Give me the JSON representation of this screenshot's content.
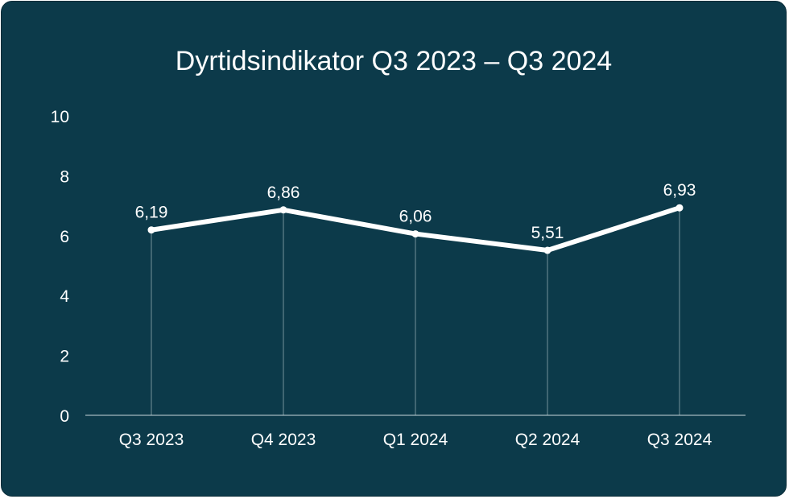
{
  "chart_data": {
    "type": "line",
    "title": "Dyrtidsindikator Q3 2023 – Q3 2024",
    "xlabel": "",
    "ylabel": "",
    "categories": [
      "Q3 2023",
      "Q4 2023",
      "Q1 2024",
      "Q2 2024",
      "Q3 2024"
    ],
    "series": [
      {
        "values": [
          6.19,
          6.86,
          6.06,
          5.51,
          6.93
        ],
        "labels": [
          "6,19",
          "6,86",
          "6,06",
          "5,51",
          "6,93"
        ]
      }
    ],
    "ylim": [
      0,
      10
    ],
    "yticks": [
      "0",
      "2",
      "4",
      "6",
      "8",
      "10"
    ],
    "grid": false,
    "legend": "none",
    "colors": {
      "background": "#0c3a4a",
      "line": "#ffffff",
      "drop_lines": "#9fb6be",
      "axis": "#c9d6da"
    }
  }
}
